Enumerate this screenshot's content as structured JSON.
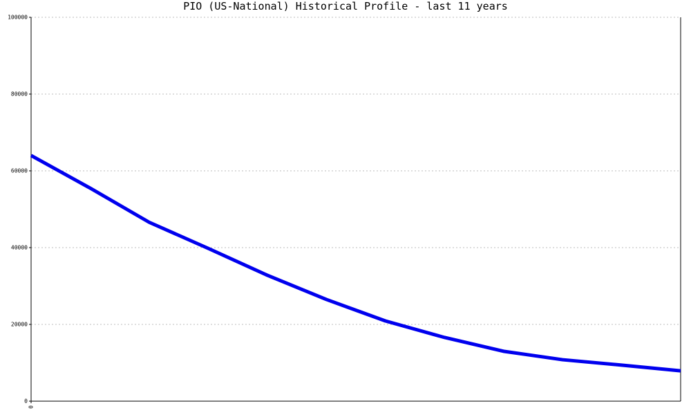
{
  "chart_data": {
    "type": "line",
    "title": "PIO (US-National) Historical Profile - last 11 years",
    "x": [
      0,
      1,
      2,
      3,
      4,
      5,
      6,
      7,
      8,
      9,
      10,
      11
    ],
    "series": [
      {
        "name": "PIO",
        "color": "#0000ee",
        "values": [
          64000,
          55500,
          46600,
          39800,
          32800,
          26500,
          20900,
          16600,
          13000,
          10800,
          9400,
          7900
        ]
      }
    ],
    "xlim": [
      0,
      11
    ],
    "xticks": [
      0
    ],
    "ylim": [
      0,
      100000
    ],
    "yticks": [
      0,
      20000,
      40000,
      60000,
      80000,
      100000
    ],
    "grid": true
  }
}
